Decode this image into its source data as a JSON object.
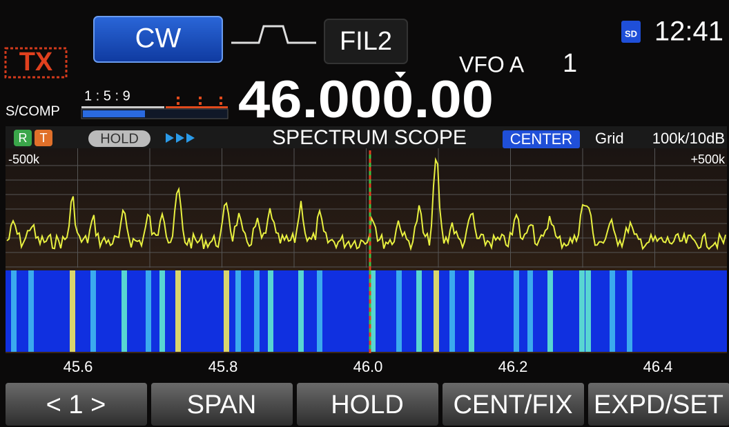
{
  "header": {
    "tx": "TX",
    "mode": "CW",
    "filter": "FIL2",
    "sd": "SD",
    "time": "12:41",
    "vfo": "VFO A",
    "memory": "1",
    "meter_label": "S/COMP",
    "meter_scale": "1 : 5 : 9",
    "frequency": "46.000.00"
  },
  "scope": {
    "indicators": [
      "R",
      "T"
    ],
    "hold": "HOLD",
    "title": "SPECTRUM SCOPE",
    "mode": "CENTER",
    "grid_label": "Grid",
    "grid_setting": "100k/10dB",
    "span_left": "-500k",
    "span_right": "+500k",
    "freq_labels": [
      "45.6",
      "45.8",
      "46.0",
      "46.2",
      "46.4"
    ]
  },
  "buttons": [
    "< 1 >",
    "SPAN",
    "HOLD",
    "CENT/FIX",
    "EXPD/SET"
  ]
}
